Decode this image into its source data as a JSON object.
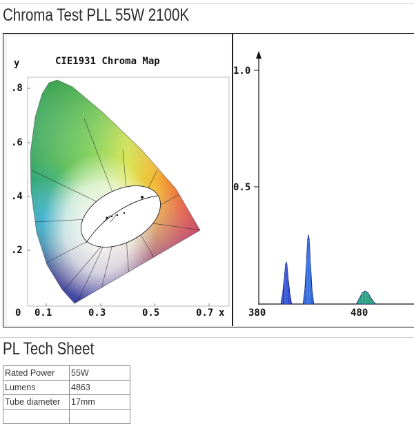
{
  "page": {
    "title": "Chroma Test PLL 55W 2100K",
    "section2_title": "PL Tech Sheet"
  },
  "chroma_chart": {
    "title": "CIE1931 Chroma Map",
    "xlabel": "x",
    "ylabel": "y",
    "x_ticks": [
      "0",
      "0.1",
      "0.3",
      "0.5",
      "0.7"
    ],
    "y_ticks": [
      ".8",
      ".6",
      ".4",
      ".2"
    ]
  },
  "chart_data": {
    "type": "line",
    "title": "",
    "xlabel": "",
    "ylabel": "",
    "x_ticks": [
      "380",
      "480"
    ],
    "y_ticks": [
      "1.0",
      "0.5"
    ],
    "xlim": [
      380,
      555
    ],
    "ylim": [
      0,
      1.07
    ],
    "series": [
      {
        "color": "#1f3fd0",
        "x": [
          405,
          407,
          409,
          410,
          411,
          412,
          413,
          415,
          417
        ],
        "y": [
          0,
          0.05,
          0.12,
          0.17,
          0.185,
          0.17,
          0.12,
          0.05,
          0
        ]
      },
      {
        "color": "#1f5fd8",
        "x": [
          430,
          432,
          434,
          435,
          436,
          437,
          438,
          440,
          442
        ],
        "y": [
          0,
          0.07,
          0.2,
          0.28,
          0.305,
          0.28,
          0.2,
          0.07,
          0
        ]
      },
      {
        "color": "#2ca080",
        "x": [
          490,
          494,
          497,
          500,
          503,
          506,
          509,
          512
        ],
        "y": [
          0,
          0.03,
          0.05,
          0.058,
          0.05,
          0.03,
          0.012,
          0
        ]
      }
    ]
  },
  "tech_sheet": {
    "rows": [
      {
        "label": "Rated Power",
        "value": "55W"
      },
      {
        "label": "Lumens",
        "value": "4863"
      },
      {
        "label": "Tube diameter",
        "value": "17mm"
      },
      {
        "label": "",
        "value": ""
      }
    ]
  }
}
